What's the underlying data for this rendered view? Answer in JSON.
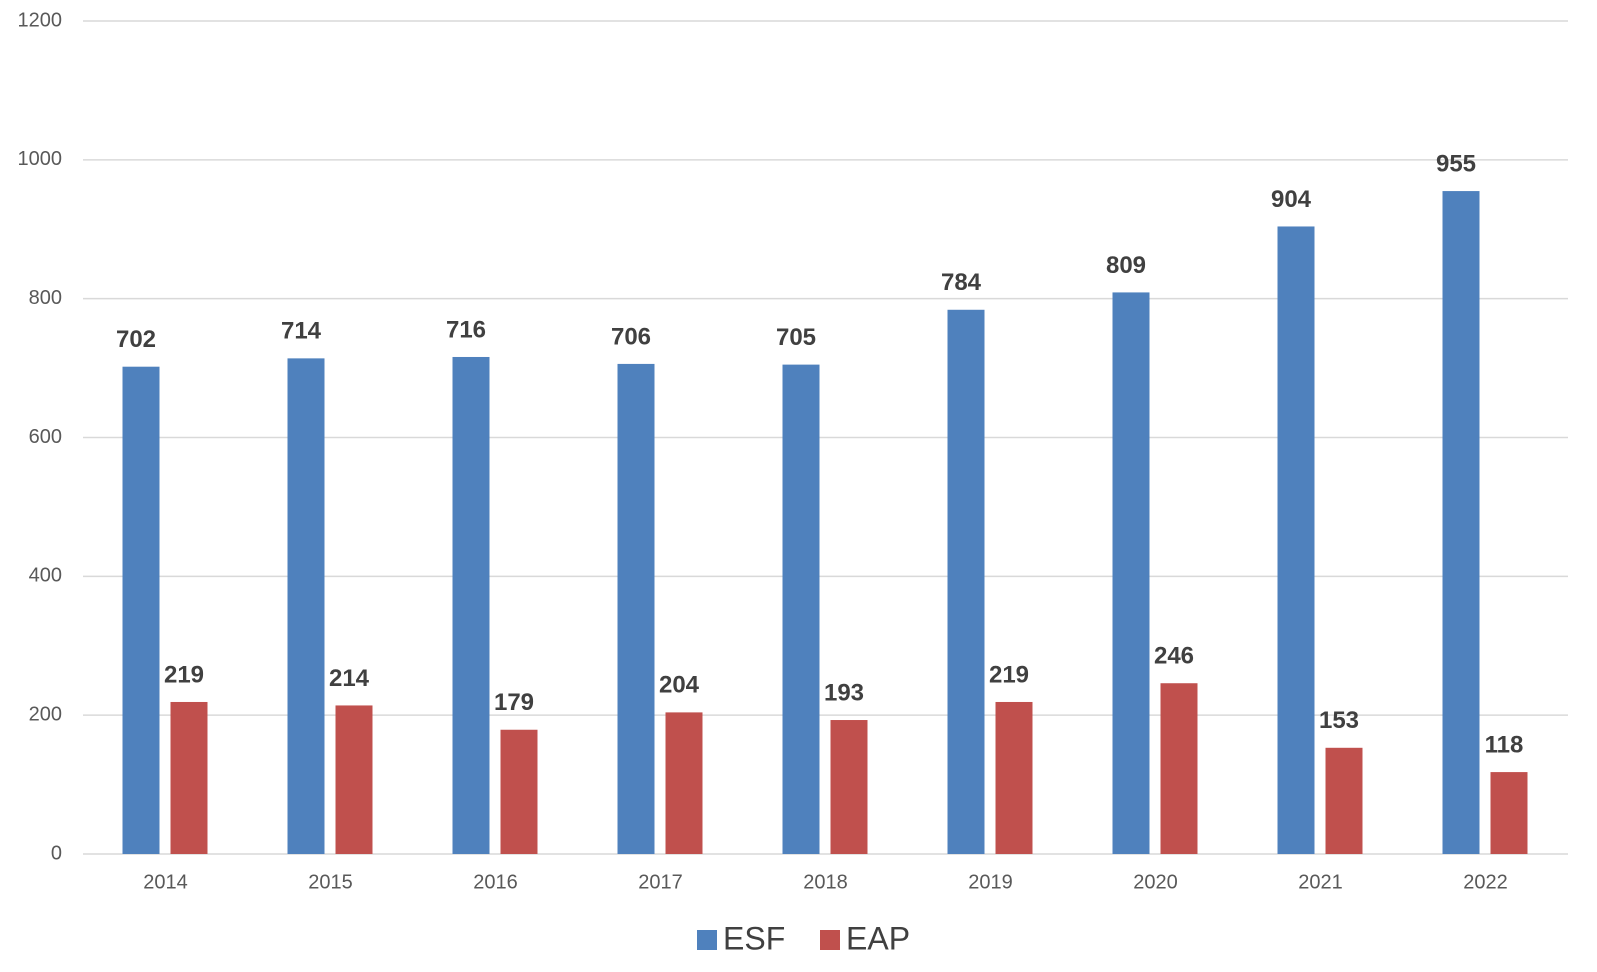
{
  "chart_data": {
    "type": "bar",
    "categories": [
      "2014",
      "2015",
      "2016",
      "2017",
      "2018",
      "2019",
      "2020",
      "2021",
      "2022"
    ],
    "series": [
      {
        "name": "ESF",
        "color": "#4f81bd",
        "values": [
          702,
          714,
          716,
          706,
          705,
          784,
          809,
          904,
          955
        ]
      },
      {
        "name": "EAP",
        "color": "#c0504d",
        "values": [
          219,
          214,
          179,
          204,
          193,
          219,
          246,
          153,
          118
        ]
      }
    ],
    "ylim": [
      0,
      1200
    ],
    "yticks": [
      0,
      200,
      400,
      600,
      800,
      1000,
      1200
    ],
    "grid": true,
    "legend": "bottom"
  }
}
